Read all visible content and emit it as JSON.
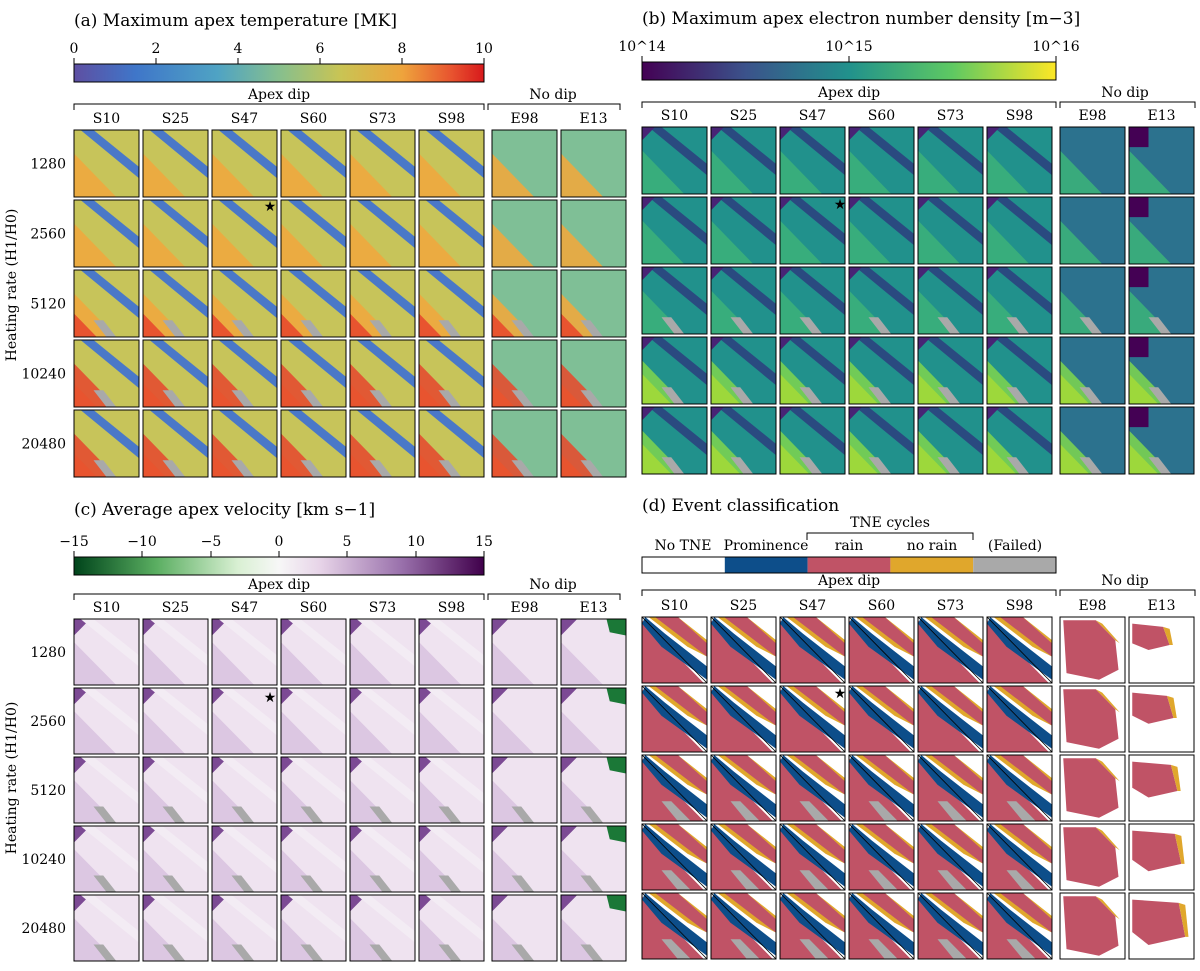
{
  "chart_data": [
    {
      "type": "heatmap",
      "title": "(a) Maximum apex temperature [MK]",
      "colorbar": {
        "ticks": [
          "0",
          "2",
          "4",
          "6",
          "8",
          "10"
        ],
        "range": [
          0,
          10
        ],
        "scale": "linear"
      },
      "group_labels": [
        "Apex dip",
        "No dip"
      ],
      "columns": [
        "S10",
        "S25",
        "S47",
        "S60",
        "S73",
        "S98",
        "E98",
        "E13"
      ],
      "rows": [
        "1280",
        "2560",
        "5120",
        "10240",
        "20480"
      ],
      "ylabel": "Heating rate (H1/H0)",
      "marker": {
        "row": "2560",
        "column": "S47",
        "symbol": "★"
      }
    },
    {
      "type": "heatmap",
      "title": "(b) Maximum apex electron number density [m−3]",
      "colorbar": {
        "ticks": [
          "10^14",
          "10^15",
          "10^16"
        ],
        "range": [
          14,
          16
        ],
        "scale": "log"
      },
      "group_labels": [
        "Apex dip",
        "No dip"
      ],
      "columns": [
        "S10",
        "S25",
        "S47",
        "S60",
        "S73",
        "S98",
        "E98",
        "E13"
      ],
      "rows": [
        "1280",
        "2560",
        "5120",
        "10240",
        "20480"
      ],
      "marker": {
        "row": "2560",
        "column": "S47",
        "symbol": "★"
      }
    },
    {
      "type": "heatmap",
      "title": "(c) Average apex velocity [km s−1]",
      "colorbar": {
        "ticks": [
          "−15",
          "−10",
          "−5",
          "0",
          "5",
          "10",
          "15"
        ],
        "range": [
          -15,
          15
        ],
        "scale": "linear"
      },
      "group_labels": [
        "Apex dip",
        "No dip"
      ],
      "columns": [
        "S10",
        "S25",
        "S47",
        "S60",
        "S73",
        "S98",
        "E98",
        "E13"
      ],
      "rows": [
        "1280",
        "2560",
        "5120",
        "10240",
        "20480"
      ],
      "ylabel": "Heating rate (H1/H0)",
      "marker": {
        "row": "2560",
        "column": "S47",
        "symbol": "★"
      }
    },
    {
      "type": "heatmap",
      "title": "(d) Event classification",
      "legend": {
        "group_label": "TNE cycles",
        "categories": [
          {
            "label": "No TNE",
            "color": "#ffffff"
          },
          {
            "label": "Prominence",
            "color": "#0d4e8a"
          },
          {
            "label": "rain",
            "color": "#c05366"
          },
          {
            "label": "no rain",
            "color": "#e0a72c"
          },
          {
            "label": "(Failed)",
            "color": "#a9a9a9"
          }
        ]
      },
      "group_labels": [
        "Apex dip",
        "No dip"
      ],
      "columns": [
        "S10",
        "S25",
        "S47",
        "S60",
        "S73",
        "S98",
        "E98",
        "E13"
      ],
      "rows": [
        "1280",
        "2560",
        "5120",
        "10240",
        "20480"
      ],
      "marker": {
        "row": "2560",
        "column": "S47",
        "symbol": "★"
      }
    }
  ]
}
